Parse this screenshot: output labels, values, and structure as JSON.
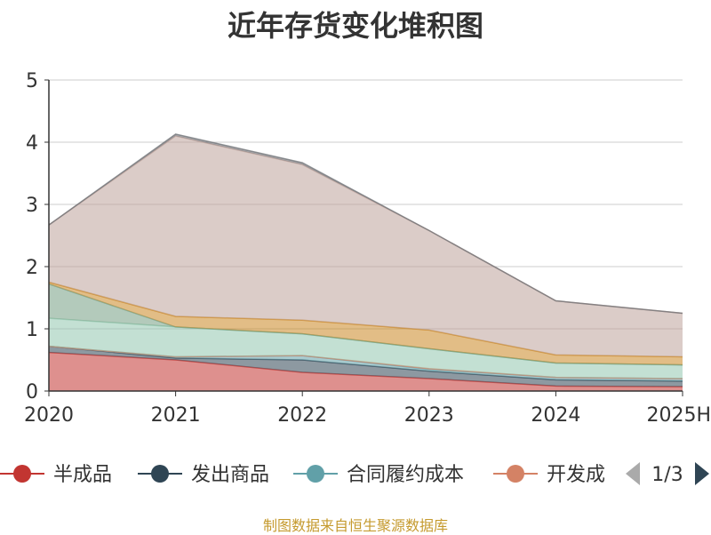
{
  "chart_data": {
    "type": "area",
    "title": "近年存货变化堆积图",
    "categories": [
      "2020",
      "2021",
      "2022",
      "2023",
      "2024",
      "2025H"
    ],
    "ylim": [
      0,
      5
    ],
    "yticks": [
      "0",
      "1",
      "2",
      "3",
      "4",
      "5"
    ],
    "stacked": true,
    "grid": true,
    "series": [
      {
        "name": "半成品",
        "color": "#c23531",
        "values": [
          0.62,
          0.5,
          0.3,
          0.2,
          0.08,
          0.07
        ]
      },
      {
        "name": "发出商品",
        "color": "#2f4554",
        "values": [
          0.1,
          0.03,
          0.2,
          0.12,
          0.1,
          0.09
        ]
      },
      {
        "name": "合同履约成本",
        "color": "#61a0a8",
        "values": [
          0.0,
          0.02,
          0.07,
          0.03,
          0.04,
          0.04
        ]
      },
      {
        "name": "开发成",
        "color": "#d48265",
        "values": [
          0.0,
          0.0,
          0.0,
          0.01,
          0.0,
          0.0
        ]
      },
      {
        "name": "",
        "color": "#91c7ae",
        "values": [
          0.45,
          0.48,
          0.35,
          0.32,
          0.23,
          0.22
        ]
      },
      {
        "name": "",
        "color": "#749f83",
        "values": [
          0.55,
          0.0,
          0.0,
          0.0,
          0.0,
          0.0
        ]
      },
      {
        "name": "",
        "color": "#ca8622",
        "values": [
          0.03,
          0.17,
          0.22,
          0.3,
          0.13,
          0.13
        ]
      },
      {
        "name": "",
        "color": "#bda29a",
        "values": [
          0.92,
          2.9,
          2.5,
          1.6,
          0.87,
          0.7
        ]
      },
      {
        "name": "",
        "color": "#6e7074",
        "values": [
          0.0,
          0.03,
          0.03,
          0.0,
          0.0,
          0.0
        ]
      }
    ],
    "legend_placement": "bottom",
    "legend_page": "1/3"
  },
  "source": "制图数据来自恒生聚源数据库"
}
